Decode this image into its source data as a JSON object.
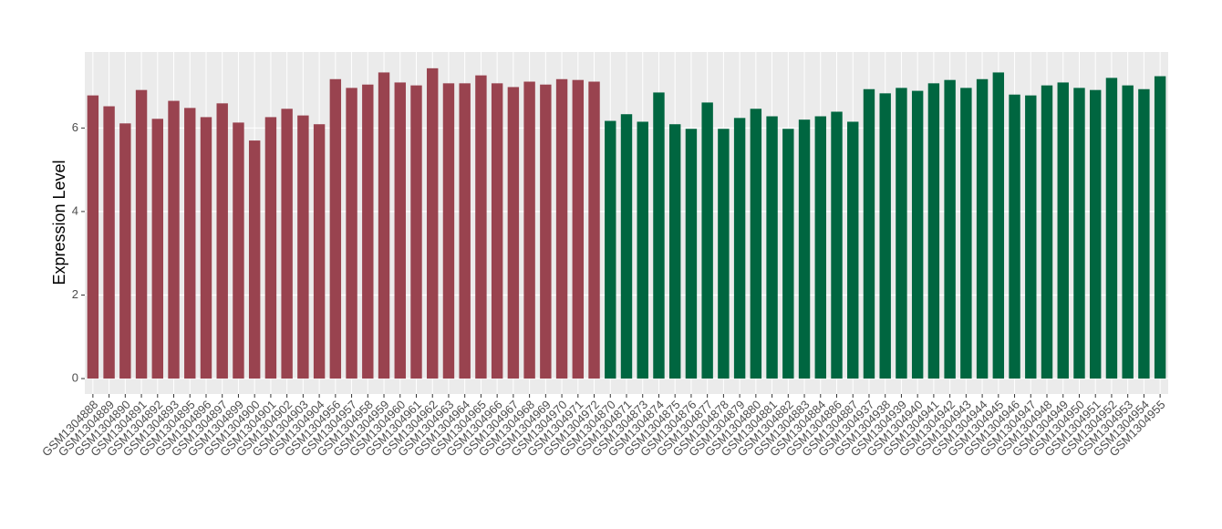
{
  "chart_data": {
    "type": "bar",
    "y_label": "Expression Level",
    "categories": [
      "GSM1304888",
      "GSM1304889",
      "GSM1304890",
      "GSM1304891",
      "GSM1304892",
      "GSM1304893",
      "GSM1304895",
      "GSM1304896",
      "GSM1304897",
      "GSM1304899",
      "GSM1304900",
      "GSM1304901",
      "GSM1304902",
      "GSM1304903",
      "GSM1304904",
      "GSM1304956",
      "GSM1304957",
      "GSM1304958",
      "GSM1304959",
      "GSM1304960",
      "GSM1304961",
      "GSM1304962",
      "GSM1304963",
      "GSM1304964",
      "GSM1304965",
      "GSM1304966",
      "GSM1304967",
      "GSM1304968",
      "GSM1304969",
      "GSM1304970",
      "GSM1304971",
      "GSM1304972",
      "GSM1304870",
      "GSM1304871",
      "GSM1304873",
      "GSM1304874",
      "GSM1304875",
      "GSM1304876",
      "GSM1304877",
      "GSM1304878",
      "GSM1304879",
      "GSM1304880",
      "GSM1304881",
      "GSM1304882",
      "GSM1304883",
      "GSM1304884",
      "GSM1304886",
      "GSM1304887",
      "GSM1304937",
      "GSM1304938",
      "GSM1304939",
      "GSM1304940",
      "GSM1304941",
      "GSM1304942",
      "GSM1304943",
      "GSM1304944",
      "GSM1304945",
      "GSM1304946",
      "GSM1304947",
      "GSM1304948",
      "GSM1304949",
      "GSM1304950",
      "GSM1304951",
      "GSM1304952",
      "GSM1304953",
      "GSM1304954",
      "GSM1304955"
    ],
    "values": [
      6.78,
      6.52,
      6.11,
      6.91,
      6.22,
      6.65,
      6.48,
      6.26,
      6.59,
      6.13,
      5.7,
      6.26,
      6.46,
      6.3,
      6.09,
      7.17,
      6.96,
      7.04,
      7.33,
      7.09,
      7.02,
      7.43,
      7.07,
      7.07,
      7.26,
      7.07,
      6.98,
      7.11,
      7.04,
      7.17,
      7.15,
      7.11,
      6.17,
      6.33,
      6.15,
      6.85,
      6.09,
      5.98,
      6.61,
      5.98,
      6.24,
      6.46,
      6.28,
      5.98,
      6.2,
      6.28,
      6.39,
      6.15,
      6.93,
      6.83,
      6.96,
      6.89,
      7.07,
      7.15,
      6.96,
      7.17,
      7.33,
      6.8,
      6.78,
      7.02,
      7.09,
      6.96,
      6.91,
      7.2,
      7.02,
      6.93,
      7.24
    ],
    "colors": [
      "#99434f",
      "#99434f",
      "#99434f",
      "#99434f",
      "#99434f",
      "#99434f",
      "#99434f",
      "#99434f",
      "#99434f",
      "#99434f",
      "#99434f",
      "#99434f",
      "#99434f",
      "#99434f",
      "#99434f",
      "#99434f",
      "#99434f",
      "#99434f",
      "#99434f",
      "#99434f",
      "#99434f",
      "#99434f",
      "#99434f",
      "#99434f",
      "#99434f",
      "#99434f",
      "#99434f",
      "#99434f",
      "#99434f",
      "#99434f",
      "#99434f",
      "#99434f",
      "#006640",
      "#006640",
      "#006640",
      "#006640",
      "#006640",
      "#006640",
      "#006640",
      "#006640",
      "#006640",
      "#006640",
      "#006640",
      "#006640",
      "#006640",
      "#006640",
      "#006640",
      "#006640",
      "#006640",
      "#006640",
      "#006640",
      "#006640",
      "#006640",
      "#006640",
      "#006640",
      "#006640",
      "#006640",
      "#006640",
      "#006640",
      "#006640",
      "#006640",
      "#006640",
      "#006640",
      "#006640",
      "#006640",
      "#006640",
      "#006640"
    ],
    "ylim": [
      -0.37,
      7.82
    ],
    "yticks": [
      0,
      2,
      4,
      6
    ],
    "grid": true
  }
}
